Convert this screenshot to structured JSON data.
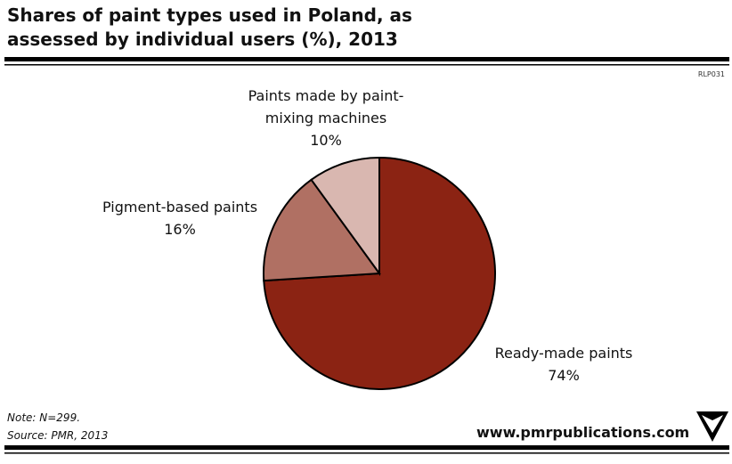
{
  "header": {
    "code": "RLP031"
  },
  "chart_data": {
    "type": "pie",
    "title": "Shares of paint types used in Poland, as assessed by individual users (%), 2013",
    "categories": [
      "Ready-made paints",
      "Pigment-based paints",
      "Paints made by paint-mixing machines"
    ],
    "values": [
      74,
      16,
      10
    ],
    "value_labels": [
      "74%",
      "16%",
      "10%"
    ],
    "colors": [
      "#8b2313",
      "#b07063",
      "#d9b7b0"
    ],
    "start_angle": 90,
    "direction": "clockwise"
  },
  "footer": {
    "note": "Note: N=299.",
    "source": "Source: PMR, 2013",
    "website": "www.pmrpublications.com"
  }
}
